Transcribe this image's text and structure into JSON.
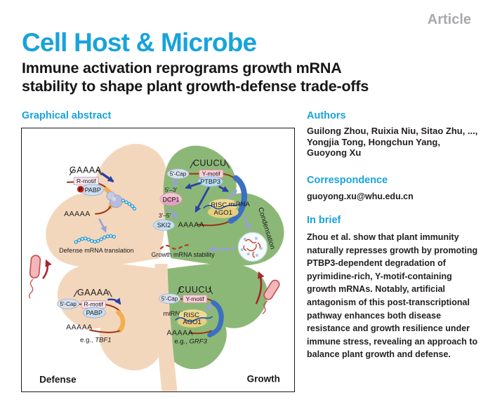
{
  "page": {
    "article_badge": "Article",
    "journal": "Cell Host & Microbe",
    "title_lines": [
      "Immune activation reprograms growth mRNA",
      "stability to shape plant growth-defense trade-offs"
    ],
    "graphical_abstract_label": "Graphical abstract"
  },
  "authors": {
    "heading": "Authors",
    "lines": [
      "Guilong Zhou, Ruixia Niu, Sitao Zhu, ...,",
      "Yongjia Tong, Hongchun Yang,",
      "Guoyong Xu"
    ]
  },
  "correspondence": {
    "heading": "Correspondence",
    "email": "guoyong.xu@whu.edu.cn"
  },
  "in_brief": {
    "heading": "In brief",
    "lines": [
      "Zhou et al. show that plant immunity",
      "naturally represses growth by promoting",
      "PTBP3-dependent degradation of",
      "pyrimidine-rich, Y-motif-containing",
      "growth mRNAs. Notably, artificial",
      "antagonism of this post-transcriptional",
      "pathway enhances both disease",
      "resistance and growth resilience under",
      "immune stress, revealing an approach to",
      "balance plant growth and defense."
    ]
  },
  "figure": {
    "colors": {
      "accent_cyan": "#18a3dc",
      "leaf_defense_beige": "#f3d7bd",
      "leaf_growth_green": "#8cb877",
      "mrna_red": "#9c3412",
      "arrow_blue": "#2b41a7",
      "arrow_purple": "#98a0d6",
      "pathogen_red": "#a8252e",
      "defense_red": "#d7282f",
      "growth_green": "#2f9e41"
    },
    "defense_label": "Defense",
    "growth_label": "Growth",
    "top_left": {
      "hairpin": "GAAAA",
      "motif": "R-motif",
      "phospho": "P",
      "pabp": "PABP",
      "polya": "AAAAA",
      "caption": "Defense mRNA translation"
    },
    "top_right": {
      "hairpin": "CUUCU",
      "cap": "5′-Cap",
      "motif": "Y-motif",
      "ptbp3": "PTBP3",
      "exo_5_3": "5′–3′",
      "dcp1": "DCP1",
      "risc": "RISC",
      "mirna": "miRNA",
      "ago1": "AGO1",
      "exo_3_5": "3′–5′",
      "ski2": "SKI2",
      "polya": "AAAAA",
      "condensation": "Condensation",
      "caption": "Growth mRNA stability"
    },
    "bottom_left": {
      "hairpin": "GAAAA",
      "cap": "5′-Cap",
      "motif": "R-motif",
      "pabp": "PABP",
      "polya": "AAAAA",
      "example_prefix": "e.g., ",
      "example_gene": "TBF1"
    },
    "bottom_right": {
      "hairpin": "CUUCU",
      "cap": "5′-Cap",
      "motif": "Y-motif",
      "mirna": "miRNA",
      "risc": "RISC",
      "ago1": "AGO1",
      "polya": "AAAAA",
      "example_prefix": "e.g., ",
      "example_gene": "GRF3"
    }
  }
}
